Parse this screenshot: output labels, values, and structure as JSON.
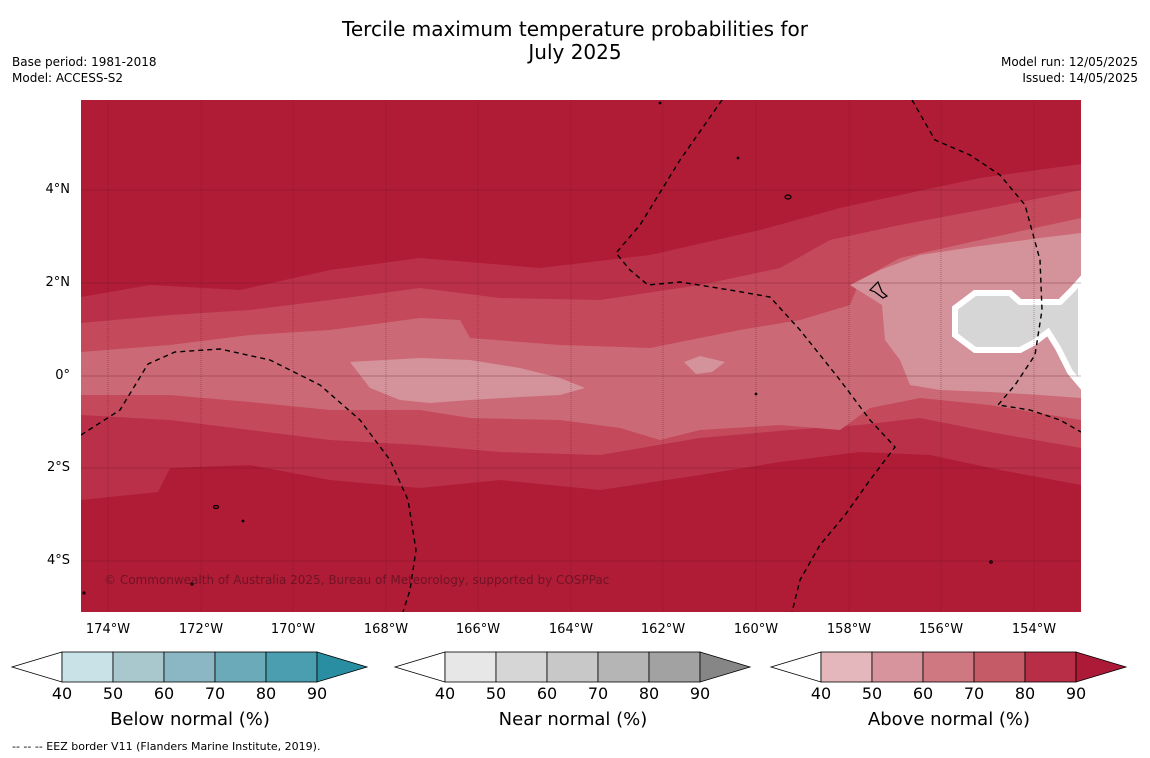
{
  "header": {
    "title_line1": "Tercile maximum temperature probabilities for",
    "title_line2": "July 2025",
    "base_period": "Base period: 1981-2018",
    "model": "Model: ACCESS-S2",
    "model_run": "Model run: 12/05/2025",
    "issued": "Issued: 14/05/2025"
  },
  "map": {
    "copyright": "© Commonwealth of Australia 2025, Bureau of Meteorology, supported by COSPPac",
    "lat_labels": [
      "4°N",
      "2°N",
      "0°",
      "2°S",
      "4°S"
    ],
    "lon_labels": [
      "174°W",
      "172°W",
      "170°W",
      "168°W",
      "166°W",
      "164°W",
      "162°W",
      "160°W",
      "158°W",
      "156°W",
      "154°W"
    ],
    "lat_range": [
      -5.1,
      5.8
    ],
    "lon_range": [
      -174.6,
      -153.0
    ],
    "dominant_category": "Above normal",
    "background_probability": "80-90%",
    "colors": {
      "above_90": "#b01c36",
      "above_80": "#ba3049",
      "above_70": "#c4495b",
      "above_60": "#cb6a76",
      "above_50": "#d4929b",
      "near_60": "#d6d6d6"
    }
  },
  "colorbars": [
    {
      "title": "Below normal (%)",
      "ticks": [
        "40",
        "50",
        "60",
        "70",
        "80",
        "90"
      ],
      "colors": [
        "#c9e2e8",
        "#a8c8ce",
        "#8ab7c3",
        "#6aaab9",
        "#4a9eaf",
        "#2a8ea3"
      ]
    },
    {
      "title": "Near normal (%)",
      "ticks": [
        "40",
        "50",
        "60",
        "70",
        "80",
        "90"
      ],
      "colors": [
        "#e7e7e7",
        "#d6d6d6",
        "#c8c8c8",
        "#b5b5b5",
        "#a2a2a2",
        "#868686"
      ]
    },
    {
      "title": "Above normal (%)",
      "ticks": [
        "40",
        "50",
        "60",
        "70",
        "80",
        "90"
      ],
      "colors": [
        "#e4b7bd",
        "#d8949c",
        "#cf7881",
        "#c45b67",
        "#b82e46",
        "#ad1a38"
      ]
    }
  ],
  "footnote": "--  --  -- EEZ border V11 (Flanders Marine Institute, 2019)."
}
